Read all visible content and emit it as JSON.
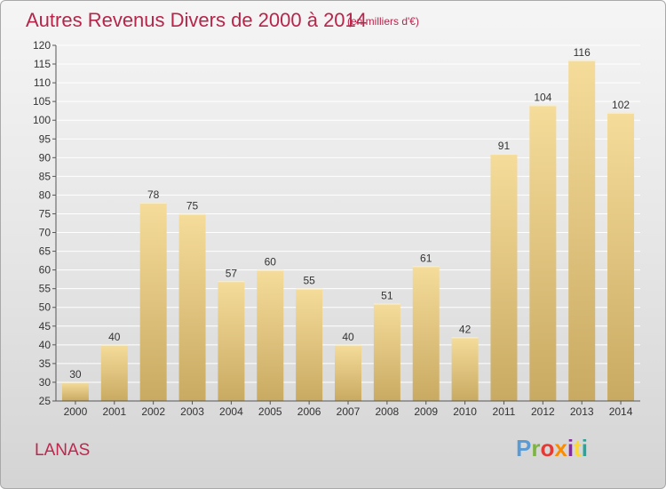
{
  "header": {
    "title": "Autres Revenus Divers de 2000 à 2014",
    "subtitle": "(en milliers d'€)"
  },
  "footer": {
    "location": "LANAS",
    "brand": "Proxiti",
    "brand_colors": [
      "#5b9bd5",
      "#7cb342",
      "#e53935",
      "#fb8c00",
      "#8e24aa",
      "#fdd835",
      "#26a69a"
    ]
  },
  "colors": {
    "bar_top": "#f5dc9a",
    "bar_bottom": "#c9aa62",
    "grid": "#ffffff",
    "axis_text": "#333333",
    "title": "#b6254a"
  },
  "chart_data": {
    "type": "bar",
    "title": "Autres Revenus Divers de 2000 à 2014",
    "xlabel": "",
    "ylabel": "",
    "categories": [
      "2000",
      "2001",
      "2002",
      "2003",
      "2004",
      "2005",
      "2006",
      "2007",
      "2008",
      "2009",
      "2010",
      "2011",
      "2012",
      "2013",
      "2014"
    ],
    "values": [
      30,
      40,
      78,
      75,
      57,
      60,
      55,
      40,
      51,
      61,
      42,
      91,
      104,
      116,
      102
    ],
    "ylim": [
      25,
      120
    ],
    "yticks": [
      25,
      30,
      35,
      40,
      45,
      50,
      55,
      60,
      65,
      70,
      75,
      80,
      85,
      90,
      95,
      100,
      105,
      110,
      115,
      120
    ],
    "grid": true,
    "data_labels": true
  }
}
